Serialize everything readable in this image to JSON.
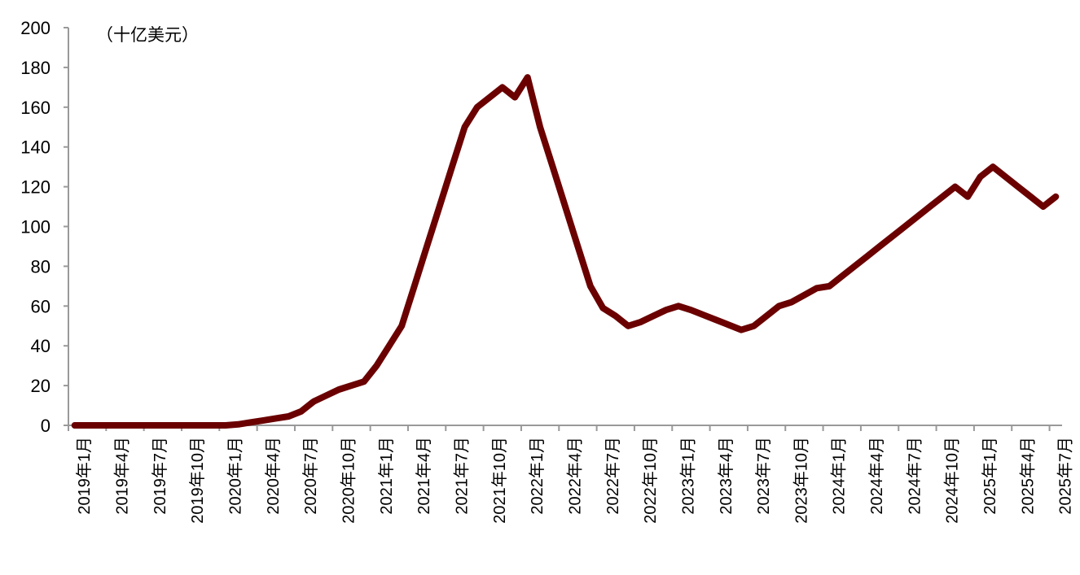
{
  "chart_data": {
    "type": "line",
    "unit_label": "（十亿美元）",
    "ylim": [
      0,
      200
    ],
    "yticks": [
      0,
      20,
      40,
      60,
      80,
      100,
      120,
      140,
      160,
      180,
      200
    ],
    "grid": false,
    "line_color": "#6b0000",
    "x_tick_labels": [
      "2019年1月",
      "2019年4月",
      "2019年7月",
      "2019年10月",
      "2020年1月",
      "2020年4月",
      "2020年7月",
      "2020年10月",
      "2021年1月",
      "2021年4月",
      "2021年7月",
      "2021年10月",
      "2022年1月",
      "2022年4月",
      "2022年7月",
      "2022年10月",
      "2023年1月",
      "2023年4月",
      "2023年7月",
      "2023年10月",
      "2024年1月",
      "2024年4月",
      "2024年7月",
      "2024年10月",
      "2025年1月",
      "2025年4月",
      "2025年7月"
    ],
    "x_start": "2019-01",
    "x_end": "2025-07",
    "x_frequency": "monthly",
    "series": [
      {
        "values": [
          0,
          0,
          0,
          0,
          0,
          0,
          0,
          0,
          0,
          0,
          0,
          0,
          0,
          0.5,
          1.5,
          2.5,
          3.5,
          4.5,
          7,
          12,
          15,
          18,
          20,
          22,
          30,
          40,
          50,
          70,
          90,
          110,
          130,
          150,
          160,
          165,
          170,
          165,
          175,
          150,
          130,
          110,
          90,
          70,
          59,
          55,
          50,
          52,
          55,
          58,
          60,
          58,
          55.5,
          53,
          50.5,
          48,
          50,
          55,
          60,
          62,
          65.5,
          69,
          70,
          75,
          80,
          85,
          90,
          95,
          100,
          105,
          110,
          115,
          120,
          115,
          125,
          130,
          125,
          120,
          115,
          110,
          115
        ]
      }
    ]
  }
}
